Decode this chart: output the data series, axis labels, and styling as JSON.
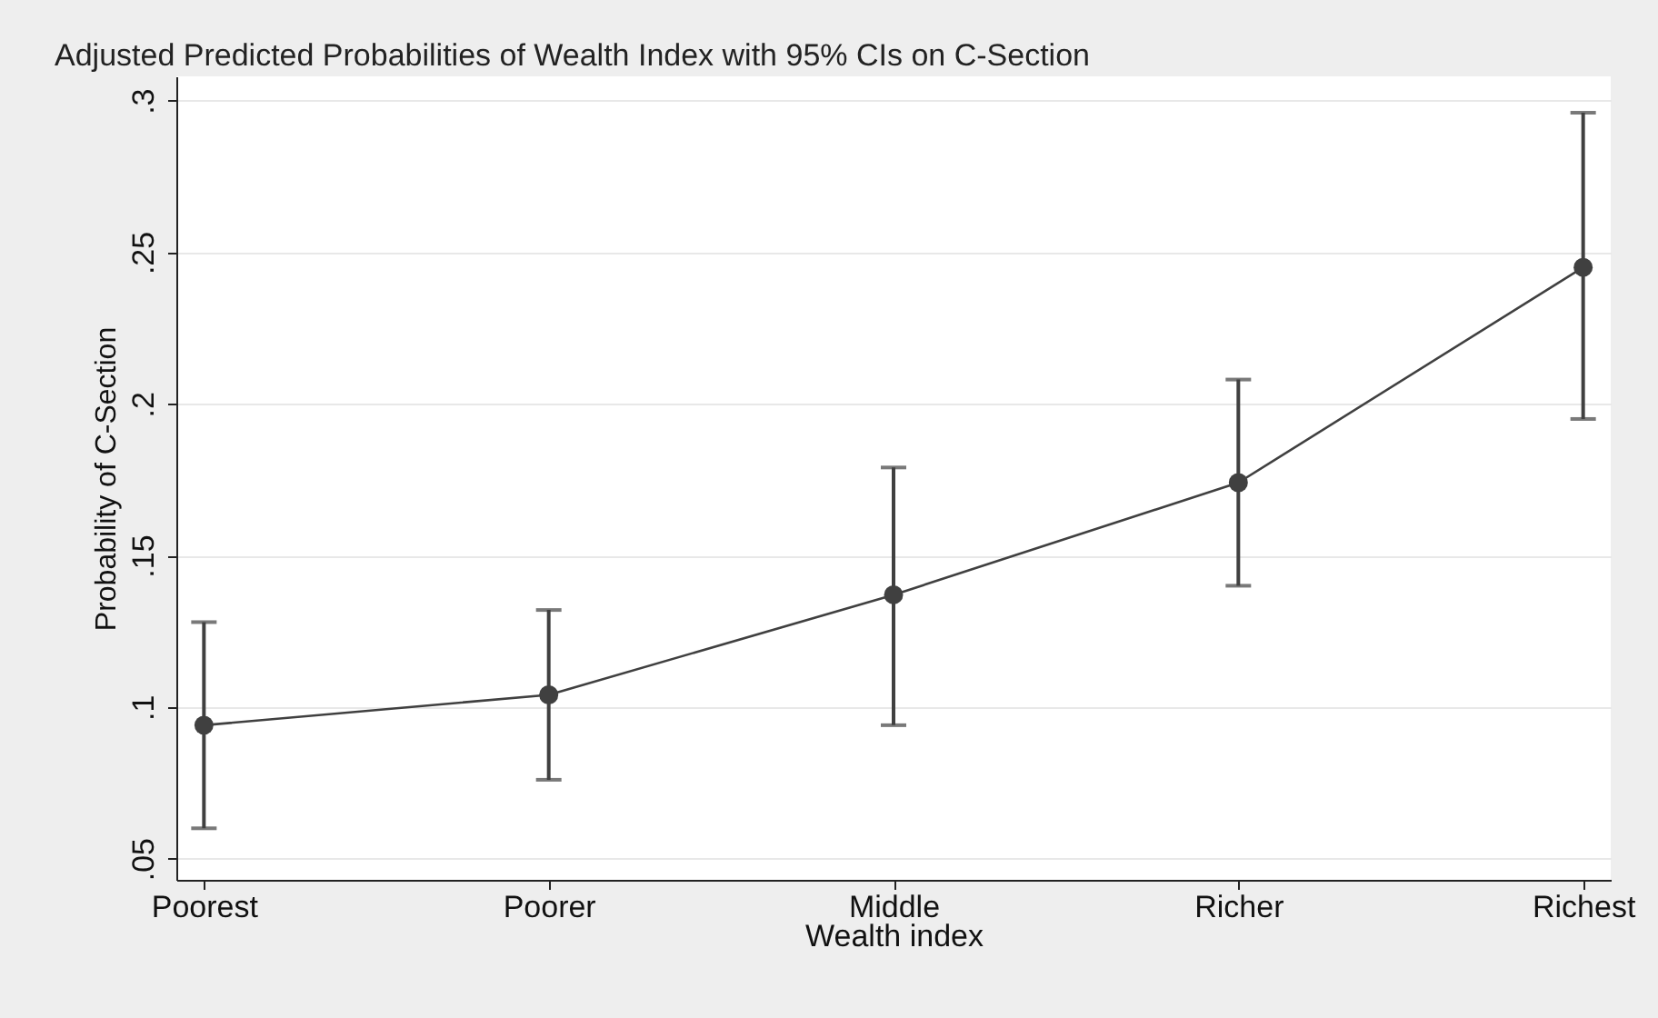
{
  "chart_data": {
    "type": "line",
    "title": "Adjusted Predicted Probabilities of Wealth Index with 95% CIs on C-Section",
    "xlabel": "Wealth index",
    "ylabel": "Probability of C-Section",
    "categories": [
      "Poorest",
      "Poorer",
      "Middle",
      "Richer",
      "Richest"
    ],
    "series": [
      {
        "color": "#404040",
        "values": [
          0.094,
          0.104,
          0.137,
          0.174,
          0.245
        ],
        "errors": [
          [
            0.06,
            0.128
          ],
          [
            0.076,
            0.132
          ],
          [
            0.094,
            0.179
          ],
          [
            0.14,
            0.208
          ],
          [
            0.195,
            0.296
          ]
        ]
      }
    ],
    "ylim": [
      0.043,
      0.308
    ],
    "yticks": [
      {
        "value": 0.05,
        "label": ".05"
      },
      {
        "value": 0.1,
        "label": ".1"
      },
      {
        "value": 0.15,
        "label": ".15"
      },
      {
        "value": 0.2,
        "label": ".2"
      },
      {
        "value": 0.25,
        "label": ".25"
      },
      {
        "value": 0.3,
        "label": ".3"
      }
    ],
    "grid": "y",
    "marker": "circle",
    "line_style": "solid"
  }
}
